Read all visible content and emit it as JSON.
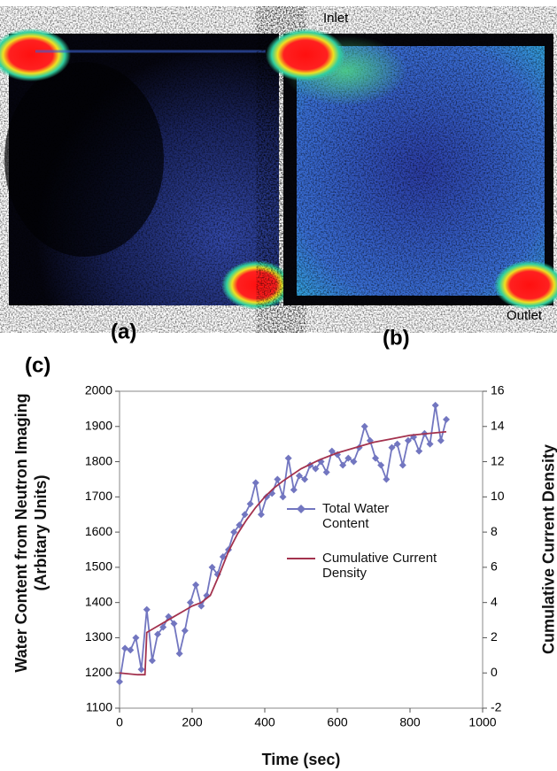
{
  "figure": {
    "inlet_label": "Inlet",
    "outlet_label": "Outlet",
    "panel_a": "(a)",
    "panel_b": "(b)",
    "panel_c": "(c)"
  },
  "chart_data": {
    "type": "line",
    "x_label": "Time (sec)",
    "y_label": "Water Content from Neutron Imaging (Arbitary Units)",
    "y2_label": "Cumulative Current Density",
    "xlim": [
      0,
      1000
    ],
    "xticks": [
      0,
      200,
      400,
      600,
      800,
      1000
    ],
    "ylim": [
      1100,
      2000
    ],
    "yticks": [
      1100,
      1200,
      1300,
      1400,
      1500,
      1600,
      1700,
      1800,
      1900,
      2000
    ],
    "y2lim": [
      -2,
      16
    ],
    "y2ticks": [
      -2,
      0,
      2,
      4,
      6,
      8,
      10,
      12,
      14,
      16
    ],
    "legend": "center-right",
    "series": [
      {
        "name": "Total Water Content",
        "color": "#7276c0",
        "marker": "diamond",
        "x": [
          0,
          15,
          30,
          45,
          60,
          75,
          90,
          105,
          120,
          135,
          150,
          165,
          180,
          195,
          210,
          225,
          240,
          255,
          270,
          285,
          300,
          315,
          330,
          345,
          360,
          375,
          390,
          405,
          420,
          435,
          450,
          465,
          480,
          495,
          510,
          525,
          540,
          555,
          570,
          585,
          600,
          615,
          630,
          645,
          660,
          675,
          690,
          705,
          720,
          735,
          750,
          765,
          780,
          795,
          810,
          825,
          840,
          855,
          870,
          885,
          900
        ],
        "values": [
          1175,
          1270,
          1265,
          1300,
          1210,
          1380,
          1235,
          1310,
          1330,
          1360,
          1340,
          1255,
          1320,
          1400,
          1450,
          1390,
          1420,
          1500,
          1480,
          1530,
          1550,
          1600,
          1620,
          1650,
          1680,
          1740,
          1650,
          1700,
          1710,
          1750,
          1700,
          1810,
          1720,
          1760,
          1750,
          1790,
          1780,
          1800,
          1770,
          1830,
          1820,
          1790,
          1810,
          1800,
          1840,
          1900,
          1860,
          1810,
          1790,
          1750,
          1840,
          1850,
          1790,
          1860,
          1870,
          1830,
          1880,
          1850,
          1960,
          1860,
          1920
        ]
      },
      {
        "name": "Cumulative Current Density",
        "color": "#a3324e",
        "axis": "y2",
        "x": [
          0,
          25,
          50,
          70,
          75,
          100,
          125,
          150,
          175,
          200,
          225,
          250,
          275,
          300,
          325,
          350,
          375,
          400,
          425,
          450,
          500,
          550,
          600,
          650,
          700,
          750,
          800,
          850,
          900
        ],
        "values": [
          0,
          -0.05,
          -0.1,
          -0.1,
          2.3,
          2.6,
          2.9,
          3.2,
          3.5,
          3.8,
          4.0,
          4.4,
          5.6,
          6.9,
          7.9,
          8.7,
          9.4,
          10.0,
          10.5,
          10.9,
          11.6,
          12.1,
          12.5,
          12.8,
          13.1,
          13.3,
          13.5,
          13.6,
          13.7
        ]
      }
    ]
  }
}
